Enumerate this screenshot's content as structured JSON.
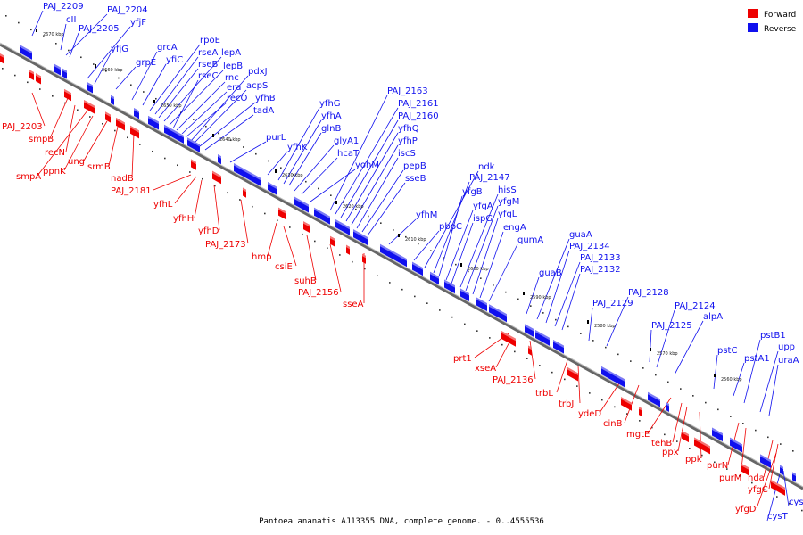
{
  "caption": "Pantoea ananatis AJ13355 DNA, complete genome. - 0..4555536",
  "legend": [
    {
      "label": "Forward",
      "color": "#ee0000"
    },
    {
      "label": "Reverse",
      "color": "#1010ee"
    }
  ],
  "colors": {
    "forward": "#ee0000",
    "reverse": "#1010ee",
    "axis": "#999999"
  },
  "ticks": [
    "2670 kbp",
    "2660 kbp",
    "2650 kbp",
    "2640 kbp",
    "2630 kbp",
    "2620 kbp",
    "2610 kbp",
    "2600 kbp",
    "2590 kbp",
    "2580 kbp",
    "2570 kbp",
    "2560 kbp"
  ],
  "reverse_genes": [
    "PAJ_2209",
    "cII",
    "PAJ_2204",
    "PAJ_2205",
    "yfjF",
    "yfjG",
    "grpE",
    "grcA",
    "yfiC",
    "rpoE",
    "rseA",
    "rseB",
    "lepA",
    "lepB",
    "rseC",
    "rnc",
    "era",
    "recO",
    "pdxJ",
    "acpS",
    "yfhB",
    "tadA",
    "purL",
    "yfhK",
    "yfhG",
    "yfhA",
    "glnB",
    "glyA1",
    "hcaT",
    "yohM",
    "PAJ_2163",
    "PAJ_2161",
    "PAJ_2160",
    "yfhQ",
    "yfhP",
    "iscS",
    "pepB",
    "sseB",
    "yfhM",
    "pbpC",
    "ndk",
    "PAJ_2147",
    "yfgB",
    "yfgA",
    "ispG",
    "hisS",
    "yfgM",
    "yfgL",
    "engA",
    "qumA",
    "guaB",
    "guaA",
    "PAJ_2134",
    "PAJ_2133",
    "PAJ_2132",
    "PAJ_2129",
    "PAJ_2128",
    "PAJ_2125",
    "PAJ_2124",
    "alpA",
    "pstC",
    "pstA1",
    "pstB1",
    "upp",
    "uraA",
    "cysW",
    "cysT"
  ],
  "forward_genes": [
    "PAJ_2203",
    "smpB",
    "recN",
    "smpA",
    "ppnK",
    "ung",
    "srmB",
    "nadB",
    "PAJ_2181",
    "yfhL",
    "yfhH",
    "yfhD",
    "PAJ_2173",
    "hmp",
    "csiE",
    "suhB",
    "PAJ_2156",
    "sseA",
    "prt1",
    "xseA",
    "PAJ_2136",
    "trbL",
    "trbJ",
    "ydeD",
    "cinB",
    "mgtE",
    "tehB",
    "ppx",
    "ppk",
    "purN",
    "purM",
    "hda",
    "yfgC",
    "yfgD"
  ]
}
